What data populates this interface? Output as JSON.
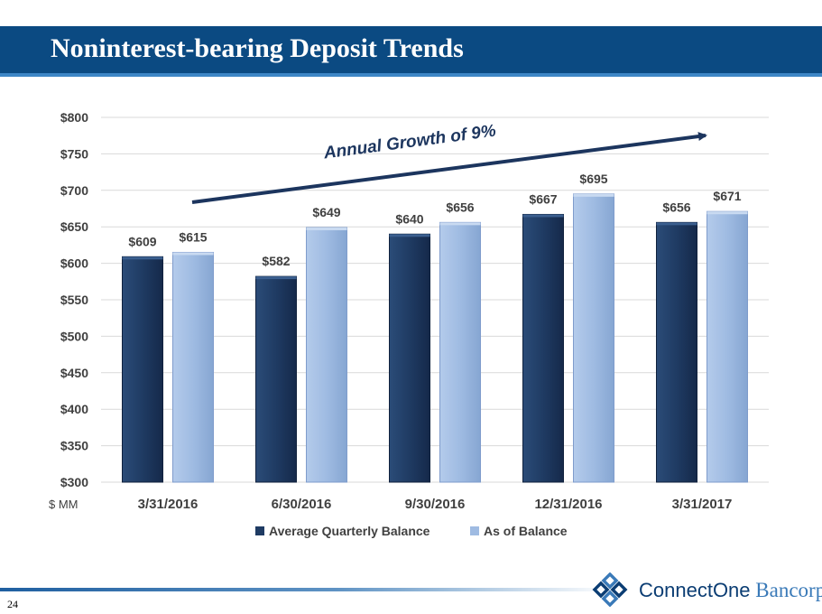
{
  "header": {
    "title": "Noninterest-bearing Deposit Trends"
  },
  "footer": {
    "page_number": "24",
    "logo_primary": "ConnectOne",
    "logo_secondary": " Bancorp"
  },
  "colors": {
    "title_bar": "#0b4a82",
    "series_avg": "#1f3b63",
    "series_asof": "#9fbbe2",
    "arrow": "#1c355e"
  },
  "chart_data": {
    "type": "bar",
    "categories": [
      "3/31/2016",
      "6/30/2016",
      "9/30/2016",
      "12/31/2016",
      "3/31/2017"
    ],
    "series": [
      {
        "name": "Average Quarterly Balance",
        "values": [
          609,
          582,
          640,
          667,
          656
        ],
        "labels": [
          "$609",
          "$582",
          "$640",
          "$667",
          "$656"
        ]
      },
      {
        "name": "As of Balance",
        "values": [
          615,
          649,
          656,
          695,
          671
        ],
        "labels": [
          "$615",
          "$649",
          "$656",
          "$695",
          "$671"
        ]
      }
    ],
    "ylim": [
      300,
      800
    ],
    "yticks": [
      300,
      350,
      400,
      450,
      500,
      550,
      600,
      650,
      700,
      750,
      800
    ],
    "ytick_labels": [
      "$300",
      "$350",
      "$400",
      "$450",
      "$500",
      "$550",
      "$600",
      "$650",
      "$700",
      "$750",
      "$800"
    ],
    "unit_label": "$ MM",
    "annotation": "Annual Growth of 9%",
    "grid": true,
    "legend_position": "bottom"
  }
}
